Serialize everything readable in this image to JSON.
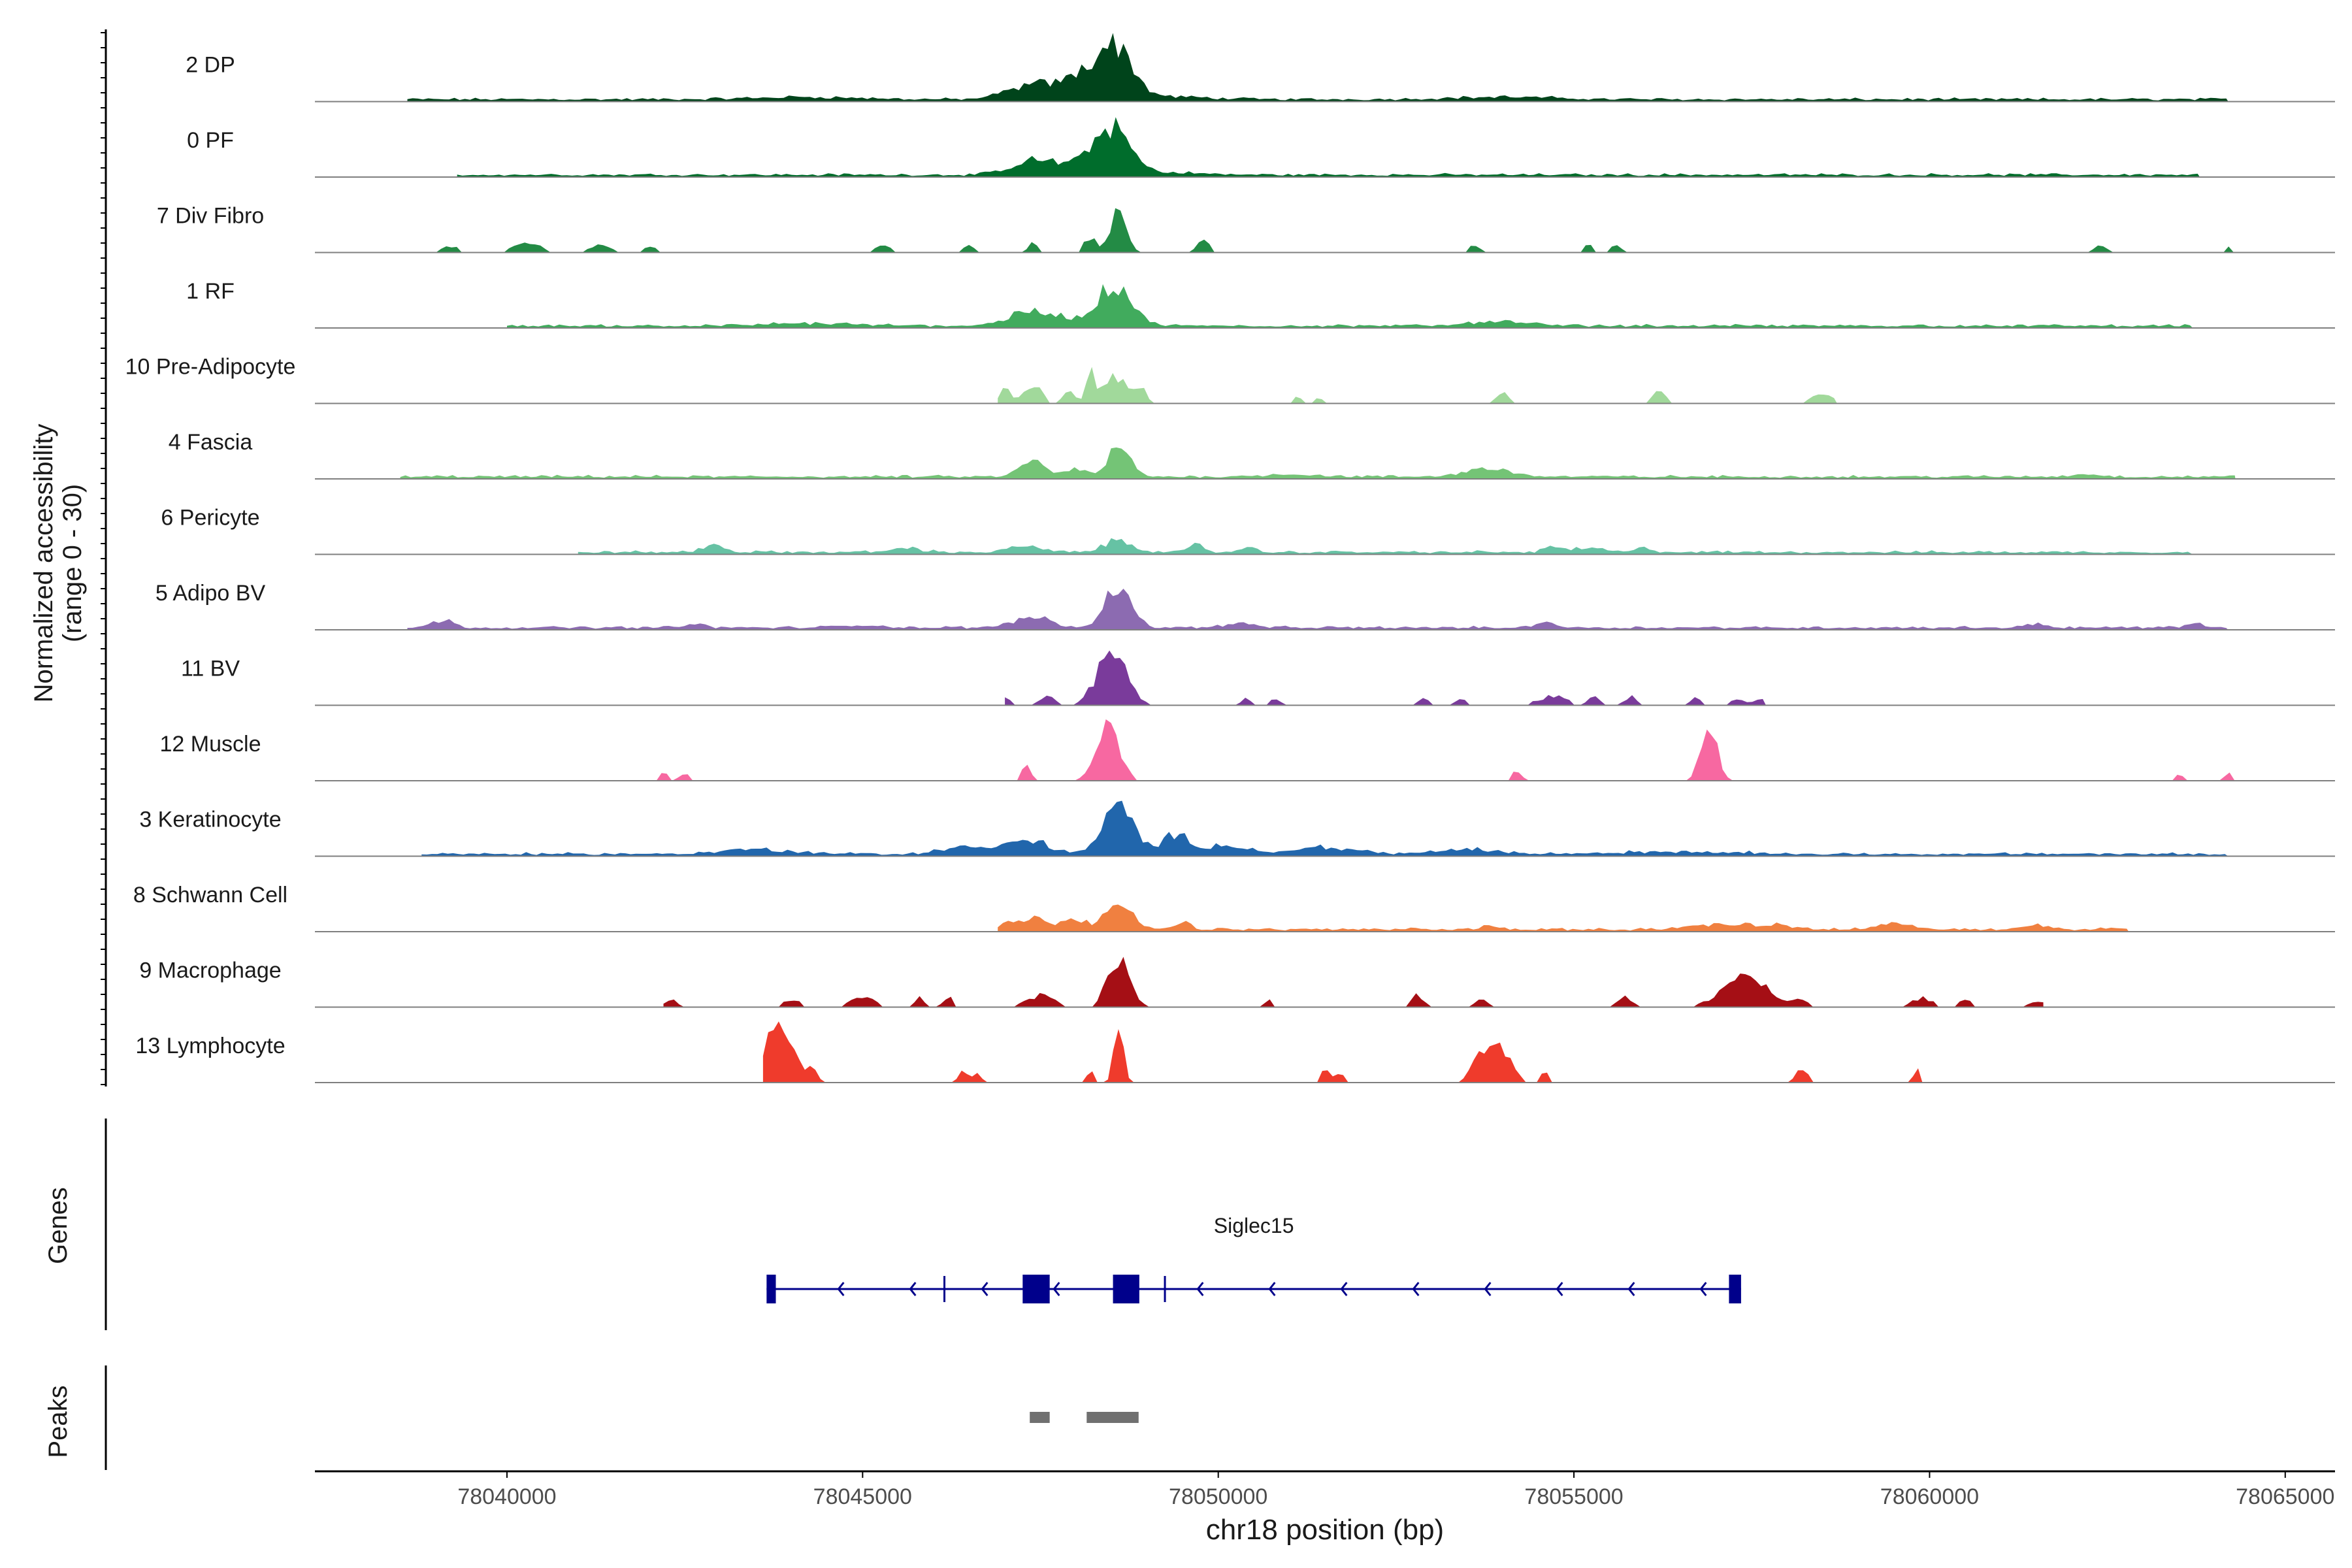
{
  "chart_data": {
    "type": "area",
    "y_axis_title_line1": "Normalized accessibility",
    "y_axis_title_line2": "(range 0 - 30)",
    "y_range": [
      0,
      30
    ],
    "x_axis_title": "chr18 position (bp)",
    "x_range": [
      78037300,
      78065700
    ],
    "x_ticks": [
      78040000,
      78045000,
      78050000,
      78055000,
      78060000,
      78065000
    ],
    "x_tick_labels": [
      "78040000",
      "78045000",
      "78050000",
      "78055000",
      "78060000",
      "78065000"
    ],
    "tracks": [
      {
        "name": "2 DP",
        "color": "#00441b",
        "style": "dense",
        "peaks": [
          [
            78048550,
            22,
            250
          ],
          [
            78048100,
            8,
            300
          ],
          [
            78047400,
            6,
            350
          ],
          [
            78049400,
            1,
            500
          ],
          [
            78044200,
            1,
            700
          ],
          [
            78054000,
            1,
            700
          ]
        ],
        "range": [
          78038600,
          78064200
        ]
      },
      {
        "name": "0 PF",
        "color": "#006d2c",
        "style": "dense",
        "peaks": [
          [
            78048500,
            20,
            250
          ],
          [
            78047400,
            6,
            300
          ],
          [
            78048000,
            3,
            300
          ],
          [
            78049200,
            1,
            500
          ]
        ],
        "range": [
          78039300,
          78063800
        ]
      },
      {
        "name": "7 Div Fibro",
        "color": "#238b45",
        "style": "sparse",
        "peaks": [
          [
            78048600,
            20,
            110
          ],
          [
            78048200,
            7,
            80
          ],
          [
            78047400,
            5,
            60
          ],
          [
            78049800,
            7,
            80
          ],
          [
            78040300,
            4,
            200
          ],
          [
            78039200,
            3,
            120
          ],
          [
            78041300,
            3,
            150
          ],
          [
            78042000,
            3,
            80
          ],
          [
            78045300,
            3,
            120
          ],
          [
            78046500,
            3,
            80
          ],
          [
            78053600,
            3,
            80
          ],
          [
            78055200,
            3,
            80
          ],
          [
            78055600,
            3,
            80
          ],
          [
            78062400,
            3,
            80
          ],
          [
            78064200,
            3,
            40
          ]
        ],
        "range": [
          78039000,
          78064300
        ]
      },
      {
        "name": "1 RF",
        "color": "#41ab5d",
        "style": "dense",
        "peaks": [
          [
            78048550,
            18,
            230
          ],
          [
            78047300,
            5,
            300
          ],
          [
            78047800,
            3,
            300
          ],
          [
            78053900,
            2,
            400
          ],
          [
            78044300,
            1,
            600
          ]
        ],
        "range": [
          78040000,
          78063700
        ]
      },
      {
        "name": "10 Pre-Adipocyte",
        "color": "#a1d99b",
        "style": "sparse",
        "peaks": [
          [
            78048200,
            12,
            60
          ],
          [
            78048550,
            11,
            180
          ],
          [
            78047400,
            9,
            120
          ],
          [
            78047000,
            6,
            80
          ],
          [
            78047900,
            5,
            80
          ],
          [
            78048900,
            6,
            80
          ],
          [
            78054000,
            5,
            80
          ],
          [
            78056200,
            6,
            80
          ],
          [
            78058500,
            4,
            150
          ],
          [
            78051100,
            3,
            60
          ],
          [
            78051400,
            3,
            60
          ]
        ],
        "range": [
          78046900,
          78058700
        ]
      },
      {
        "name": "4 Fascia",
        "color": "#74c476",
        "style": "dense",
        "peaks": [
          [
            78048600,
            12,
            160
          ],
          [
            78047400,
            6,
            180
          ],
          [
            78048000,
            3,
            150
          ],
          [
            78053800,
            4,
            300
          ],
          [
            78062200,
            1,
            200
          ],
          [
            78051000,
            1,
            400
          ]
        ],
        "range": [
          78038500,
          78064300
        ]
      },
      {
        "name": "6 Pericyte",
        "color": "#66c2a4",
        "style": "dense",
        "peaks": [
          [
            78048600,
            5,
            200
          ],
          [
            78047300,
            3,
            200
          ],
          [
            78042900,
            3,
            150
          ],
          [
            78045600,
            2,
            200
          ],
          [
            78049700,
            3,
            100
          ],
          [
            78054700,
            3,
            100
          ],
          [
            78055200,
            2,
            200
          ],
          [
            78056000,
            2,
            100
          ],
          [
            78050400,
            2,
            100
          ]
        ],
        "range": [
          78041000,
          78063700
        ]
      },
      {
        "name": "5 Adipo BV",
        "color": "#8c6bb1",
        "style": "dense",
        "peaks": [
          [
            78048600,
            18,
            180
          ],
          [
            78047400,
            5,
            250
          ],
          [
            78039100,
            3,
            150
          ],
          [
            78042600,
            2,
            120
          ],
          [
            78050300,
            2,
            200
          ],
          [
            78054600,
            3,
            120
          ],
          [
            78061500,
            2,
            120
          ],
          [
            78063700,
            2,
            120
          ],
          [
            78045000,
            1,
            300
          ]
        ],
        "range": [
          78038600,
          78064200
        ]
      },
      {
        "name": "11 BV",
        "color": "#7a3b9b",
        "style": "sparse",
        "peaks": [
          [
            78048500,
            24,
            200
          ],
          [
            78047600,
            4,
            120
          ],
          [
            78047000,
            3,
            80
          ],
          [
            78050400,
            3,
            80
          ],
          [
            78050800,
            3,
            80
          ],
          [
            78052900,
            3,
            80
          ],
          [
            78053400,
            3,
            80
          ],
          [
            78054700,
            4,
            200
          ],
          [
            78055300,
            4,
            80
          ],
          [
            78055800,
            4,
            80
          ],
          [
            78056700,
            3,
            80
          ],
          [
            78057300,
            3,
            100
          ],
          [
            78057600,
            3,
            80
          ]
        ],
        "range": [
          78047000,
          78057700
        ]
      },
      {
        "name": "12 Muscle",
        "color": "#f768a1",
        "style": "sparse",
        "peaks": [
          [
            78048450,
            22,
            160
          ],
          [
            78056900,
            22,
            120
          ],
          [
            78047300,
            7,
            60
          ],
          [
            78042200,
            3,
            80
          ],
          [
            78042500,
            3,
            80
          ],
          [
            78054200,
            5,
            60
          ],
          [
            78063500,
            3,
            60
          ],
          [
            78064200,
            3,
            60
          ]
        ],
        "range": [
          78042100,
          78064300
        ]
      },
      {
        "name": "3 Keratinocyte",
        "color": "#2166ac",
        "style": "dense",
        "peaks": [
          [
            78048600,
            20,
            220
          ],
          [
            78049400,
            8,
            180
          ],
          [
            78047300,
            6,
            300
          ],
          [
            78050100,
            4,
            300
          ],
          [
            78051500,
            3,
            400
          ],
          [
            78046400,
            3,
            300
          ],
          [
            78043500,
            2,
            500
          ],
          [
            78053500,
            2,
            400
          ],
          [
            78056500,
            1,
            800
          ]
        ],
        "range": [
          78038800,
          78064200
        ]
      },
      {
        "name": "8 Schwann Cell",
        "color": "#f08040",
        "style": "dense",
        "peaks": [
          [
            78048600,
            12,
            170
          ],
          [
            78047400,
            5,
            220
          ],
          [
            78048000,
            4,
            150
          ],
          [
            78049500,
            3,
            120
          ],
          [
            78053800,
            2,
            100
          ],
          [
            78057000,
            2,
            400
          ],
          [
            78057800,
            2,
            300
          ],
          [
            78059500,
            2,
            300
          ],
          [
            78061500,
            2,
            200
          ],
          [
            78062600,
            1,
            100
          ],
          [
            78047000,
            2,
            100
          ]
        ],
        "range": [
          78046900,
          78062800
        ]
      },
      {
        "name": "9 Macrophage",
        "color": "#a50f15",
        "style": "sparse",
        "peaks": [
          [
            78048600,
            22,
            150
          ],
          [
            78057400,
            14,
            300
          ],
          [
            78046200,
            5,
            60
          ],
          [
            78047500,
            5,
            200
          ],
          [
            78045000,
            5,
            150
          ],
          [
            78045800,
            4,
            60
          ],
          [
            78044000,
            3,
            150
          ],
          [
            78042300,
            3,
            100
          ],
          [
            78050700,
            3,
            60
          ],
          [
            78052800,
            5,
            100
          ],
          [
            78053700,
            3,
            100
          ],
          [
            78055700,
            5,
            100
          ],
          [
            78058200,
            3,
            100
          ],
          [
            78059900,
            4,
            150
          ],
          [
            78060500,
            3,
            100
          ],
          [
            78061500,
            3,
            100
          ]
        ],
        "range": [
          78042200,
          78061600
        ]
      },
      {
        "name": "13 Lymphocyte",
        "color": "#ef3b2c",
        "style": "sparse",
        "peaks": [
          [
            78048600,
            30,
            60
          ],
          [
            78043800,
            22,
            220
          ],
          [
            78053900,
            18,
            180
          ],
          [
            78053600,
            8,
            80
          ],
          [
            78044300,
            5,
            60
          ],
          [
            78046400,
            5,
            60
          ],
          [
            78046600,
            5,
            60
          ],
          [
            78048200,
            5,
            60
          ],
          [
            78051500,
            5,
            60
          ],
          [
            78051700,
            5,
            60
          ],
          [
            78054600,
            5,
            60
          ],
          [
            78058200,
            7,
            80
          ],
          [
            78059850,
            8,
            60
          ]
        ],
        "range": [
          78043600,
          78059900
        ]
      }
    ],
    "genes_label": "Genes",
    "gene": {
      "name": "Siglec15",
      "color": "#00008b",
      "start": 78043650,
      "end": 78057350,
      "strand": "-",
      "exons": [
        [
          78043650,
          78043780
        ],
        [
          78047250,
          78047630
        ],
        [
          78048520,
          78048890
        ],
        [
          78057180,
          78057350
        ]
      ],
      "thin_marks": [
        78046150,
        78049250
      ]
    },
    "peaks_label": "Peaks",
    "peak_regions": [
      [
        78047350,
        78047630
      ],
      [
        78048150,
        78048880
      ]
    ],
    "peak_color": "#707070"
  }
}
